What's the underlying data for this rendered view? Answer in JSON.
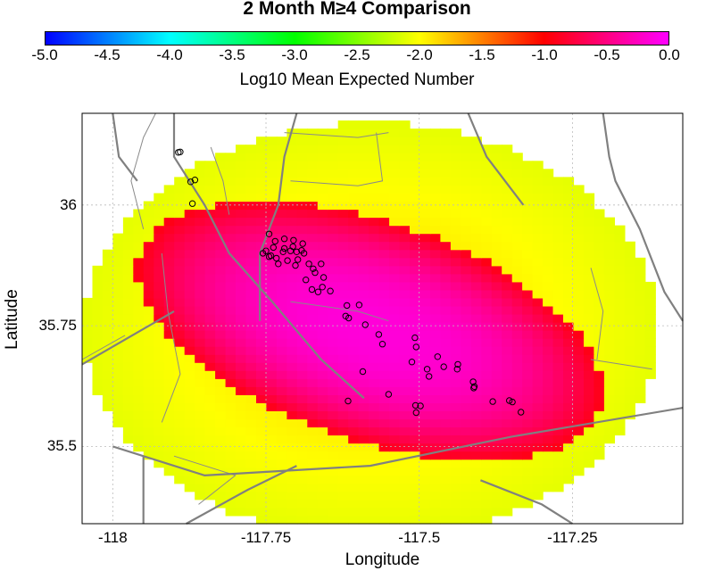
{
  "chart_data": {
    "type": "heatmap",
    "title": "2 Month M≥4 Comparison",
    "xlabel": "Longitude",
    "ylabel": "Latitude",
    "colorbar": {
      "label": "Log10 Mean Expected Number",
      "range": [
        -5.0,
        0.0
      ],
      "ticks": [
        "-5.0",
        "-4.5",
        "-4.0",
        "-3.5",
        "-3.0",
        "-2.5",
        "-2.0",
        "-1.5",
        "-1.0",
        "-0.5",
        "0.0"
      ],
      "colors": [
        "#0000ff",
        "#00ffff",
        "#00ff00",
        "#ffff00",
        "#ff0000",
        "#ff00ff"
      ]
    },
    "xlim": [
      -118.05,
      -117.07
    ],
    "ylim": [
      35.34,
      36.19
    ],
    "xticks": [
      {
        "value": -118.0,
        "label": "-118"
      },
      {
        "value": -117.75,
        "label": "-117.75"
      },
      {
        "value": -117.5,
        "label": "-117.5"
      },
      {
        "value": -117.25,
        "label": "-117.25"
      }
    ],
    "yticks": [
      {
        "value": 36.0,
        "label": "36"
      },
      {
        "value": 35.75,
        "label": "35.75"
      },
      {
        "value": 35.5,
        "label": "35.5"
      }
    ],
    "grid": true,
    "field": {
      "center": [
        -117.58,
        35.74
      ],
      "peak_value": -0.15,
      "cell_size": 0.0167
    },
    "events": [
      [
        -117.893,
        36.109
      ],
      [
        -117.89,
        36.11
      ],
      [
        -117.873,
        36.048
      ],
      [
        -117.866,
        36.052
      ],
      [
        -117.87,
        36.003
      ],
      [
        -117.745,
        35.94
      ],
      [
        -117.735,
        35.925
      ],
      [
        -117.72,
        35.93
      ],
      [
        -117.705,
        35.927
      ],
      [
        -117.69,
        35.92
      ],
      [
        -117.738,
        35.912
      ],
      [
        -117.75,
        35.905
      ],
      [
        -117.755,
        35.9
      ],
      [
        -117.745,
        35.893
      ],
      [
        -117.733,
        35.89
      ],
      [
        -117.722,
        35.903
      ],
      [
        -117.71,
        35.905
      ],
      [
        -117.7,
        35.903
      ],
      [
        -117.692,
        35.906
      ],
      [
        -117.715,
        35.885
      ],
      [
        -117.702,
        35.875
      ],
      [
        -117.73,
        35.878
      ],
      [
        -117.742,
        35.895
      ],
      [
        -117.72,
        35.91
      ],
      [
        -117.706,
        35.914
      ],
      [
        -117.688,
        35.9
      ],
      [
        -117.698,
        35.887
      ],
      [
        -117.68,
        35.878
      ],
      [
        -117.673,
        35.868
      ],
      [
        -117.66,
        35.878
      ],
      [
        -117.67,
        35.86
      ],
      [
        -117.685,
        35.845
      ],
      [
        -117.656,
        35.85
      ],
      [
        -117.665,
        35.82
      ],
      [
        -117.675,
        35.825
      ],
      [
        -117.658,
        35.83
      ],
      [
        -117.645,
        35.822
      ],
      [
        -117.618,
        35.792
      ],
      [
        -117.62,
        35.77
      ],
      [
        -117.615,
        35.766
      ],
      [
        -117.598,
        35.793
      ],
      [
        -117.588,
        35.752
      ],
      [
        -117.566,
        35.732
      ],
      [
        -117.56,
        35.712
      ],
      [
        -117.507,
        35.725
      ],
      [
        -117.505,
        35.706
      ],
      [
        -117.47,
        35.686
      ],
      [
        -117.46,
        35.665
      ],
      [
        -117.437,
        35.67
      ],
      [
        -117.438,
        35.66
      ],
      [
        -117.412,
        35.634
      ],
      [
        -117.41,
        35.624
      ],
      [
        -117.411,
        35.621
      ],
      [
        -117.487,
        35.66
      ],
      [
        -117.484,
        35.645
      ],
      [
        -117.512,
        35.675
      ],
      [
        -117.592,
        35.655
      ],
      [
        -117.55,
        35.608
      ],
      [
        -117.506,
        35.585
      ],
      [
        -117.498,
        35.584
      ],
      [
        -117.505,
        35.57
      ],
      [
        -117.38,
        35.593
      ],
      [
        -117.353,
        35.595
      ],
      [
        -117.348,
        35.592
      ],
      [
        -117.334,
        35.571
      ],
      [
        -117.616,
        35.594
      ]
    ],
    "faults_major": [
      [
        [
          -118.0,
          36.19
        ],
        [
          -117.99,
          36.1
        ],
        [
          -117.96,
          36.05
        ]
      ],
      [
        [
          -117.9,
          36.19
        ],
        [
          -117.9,
          36.1
        ],
        [
          -117.85,
          36.0
        ],
        [
          -117.81,
          35.9
        ],
        [
          -117.74,
          35.8
        ],
        [
          -117.66,
          35.68
        ],
        [
          -117.59,
          35.6
        ]
      ],
      [
        [
          -117.7,
          36.19
        ],
        [
          -117.72,
          36.1
        ],
        [
          -117.73,
          36.0
        ],
        [
          -117.76,
          35.9
        ],
        [
          -117.76,
          35.76
        ]
      ],
      [
        [
          -117.42,
          36.19
        ],
        [
          -117.39,
          36.1
        ],
        [
          -117.33,
          36.0
        ]
      ],
      [
        [
          -117.2,
          36.19
        ],
        [
          -117.19,
          36.1
        ],
        [
          -117.18,
          36.05
        ],
        [
          -117.14,
          35.95
        ],
        [
          -117.1,
          35.82
        ],
        [
          -117.07,
          35.76
        ]
      ],
      [
        [
          -118.05,
          35.67
        ],
        [
          -117.9,
          35.78
        ]
      ],
      [
        [
          -118.0,
          35.5
        ],
        [
          -117.85,
          35.44
        ],
        [
          -117.58,
          35.46
        ],
        [
          -117.35,
          35.52
        ],
        [
          -117.07,
          35.58
        ]
      ],
      [
        [
          -117.88,
          35.34
        ],
        [
          -117.78,
          35.41
        ],
        [
          -117.7,
          35.46
        ]
      ],
      [
        [
          -117.4,
          35.43
        ],
        [
          -117.3,
          35.38
        ],
        [
          -117.25,
          35.34
        ]
      ],
      [
        [
          -117.95,
          35.34
        ],
        [
          -117.95,
          35.48
        ]
      ]
    ],
    "faults_minor": [
      [
        [
          -117.93,
          36.19
        ],
        [
          -117.95,
          36.14
        ],
        [
          -117.97,
          36.05
        ],
        [
          -117.95,
          35.95
        ]
      ],
      [
        [
          -117.92,
          35.9
        ],
        [
          -117.91,
          35.78
        ],
        [
          -117.89,
          35.65
        ],
        [
          -117.92,
          35.55
        ]
      ],
      [
        [
          -117.9,
          35.48
        ],
        [
          -117.8,
          35.44
        ],
        [
          -117.86,
          35.38
        ]
      ],
      [
        [
          -117.72,
          36.15
        ],
        [
          -117.6,
          36.14
        ],
        [
          -117.55,
          36.15
        ]
      ],
      [
        [
          -117.71,
          36.05
        ],
        [
          -117.6,
          36.04
        ],
        [
          -117.56,
          36.05
        ],
        [
          -117.57,
          36.15
        ]
      ],
      [
        [
          -117.71,
          35.8
        ],
        [
          -117.6,
          35.78
        ],
        [
          -117.55,
          35.76
        ]
      ],
      [
        [
          -117.22,
          35.87
        ],
        [
          -117.2,
          35.78
        ],
        [
          -117.21,
          35.68
        ]
      ],
      [
        [
          -117.22,
          35.68
        ],
        [
          -117.12,
          35.66
        ]
      ],
      [
        [
          -117.98,
          35.73
        ],
        [
          -118.05,
          35.68
        ]
      ],
      [
        [
          -117.84,
          36.12
        ],
        [
          -117.82,
          36.05
        ],
        [
          -117.81,
          35.98
        ]
      ]
    ]
  }
}
